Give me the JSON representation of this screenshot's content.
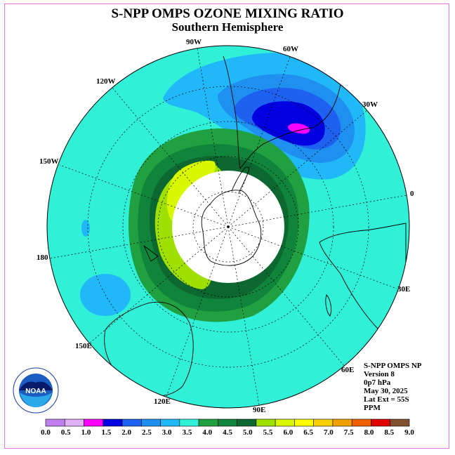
{
  "header": {
    "title": "S-NPP OMPS OZONE MIXING RATIO",
    "subtitle": "Southern Hemisphere"
  },
  "map_labels": {
    "lon_90w": "90W",
    "lon_60w": "60W",
    "lon_30w": "30W",
    "lon_0": "0",
    "lon_30e": "30E",
    "lon_60e": "60E",
    "lon_90e": "90E",
    "lon_120e": "120E",
    "lon_150e": "150E",
    "lon_180": "180",
    "lon_150w": "150W",
    "lon_120w": "120W"
  },
  "info": {
    "product": "S-NPP OMPS NP",
    "version": "Version 8",
    "level": "0p7 hPa",
    "date": "May 30, 2025",
    "lat_ext": "Lat Ext = 55S",
    "units": "PPM"
  },
  "logo": {
    "text": "NOAA",
    "ring_text": "NATIONAL OCEANIC AND ATMOSPHERIC ADMINISTRATION · U.S. DEPARTMENT OF COMMERCE"
  },
  "colorbar": {
    "ticks": [
      "0.0",
      "0.5",
      "1.0",
      "1.5",
      "2.0",
      "2.5",
      "3.0",
      "3.5",
      "4.0",
      "4.5",
      "5.0",
      "5.5",
      "6.0",
      "6.5",
      "7.0",
      "7.5",
      "8.0",
      "8.5",
      "9.0"
    ],
    "colors": [
      "#c080f0",
      "#e0b0f8",
      "#ff00ff",
      "#0000e0",
      "#1e60f0",
      "#2090f0",
      "#20b8f8",
      "#30f0d8",
      "#20a040",
      "#10843a",
      "#0c6830",
      "#a0e000",
      "#d8f800",
      "#ffff00",
      "#f8d000",
      "#f0a000",
      "#f06000",
      "#e00000",
      "#805030"
    ]
  },
  "map_colors": {
    "background": "#30f0d8",
    "hole": "#ffffff",
    "green_dark": "#0c6830",
    "green_mid": "#10843a",
    "green_light": "#20a040",
    "yellowgreen": "#a0e000",
    "lightyellow": "#d8f800",
    "blue_1": "#20b8f8",
    "blue_2": "#2090f0",
    "blue_3": "#1e60f0",
    "blue_4": "#0000e0",
    "magenta": "#ff00ff"
  }
}
